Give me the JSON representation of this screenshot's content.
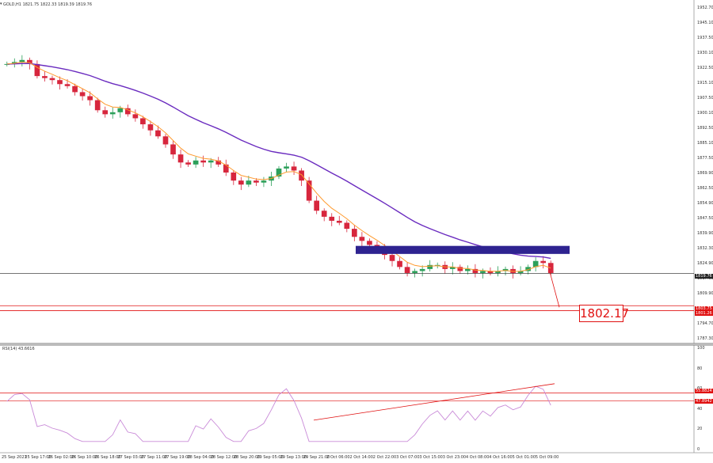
{
  "header": {
    "symbol_line": "GOLD,H1  1821.75  1822.33  1819.39  1819.76"
  },
  "price_axis": [
    "1952.70",
    "1945.10",
    "1937.50",
    "1930.10",
    "1922.50",
    "1915.10",
    "1907.50",
    "1900.10",
    "1892.50",
    "1885.10",
    "1877.50",
    "1869.90",
    "1862.50",
    "1854.90",
    "1847.50",
    "1839.90",
    "1832.30",
    "1824.90",
    "1817.30",
    "1809.90",
    "1802.30",
    "1794.70",
    "1787.30"
  ],
  "price_tags": {
    "current": "1819.76",
    "upper": "1803.75",
    "lower": "1801.26"
  },
  "target_label": "1802.17",
  "rsi": {
    "title": "RSI(14) 43.6616",
    "axis": [
      "100",
      "80",
      "60",
      "40",
      "20",
      "0"
    ],
    "tags": {
      "upper": "55.8824",
      "lower": "47.8942"
    }
  },
  "time_axis": [
    "25 Sep 2023",
    "25 Sep 17:00",
    "26 Sep 02:00",
    "26 Sep 10:00",
    "26 Sep 18:00",
    "27 Sep 03:00",
    "27 Sep 11:00",
    "27 Sep 19:00",
    "28 Sep 04:00",
    "28 Sep 12:00",
    "28 Sep 20:00",
    "29 Sep 05:00",
    "29 Sep 13:00",
    "29 Sep 21:00",
    "2 Oct 06:00",
    "2 Oct 14:00",
    "2 Oct 22:00",
    "3 Oct 07:00",
    "3 Oct 15:00",
    "3 Oct 23:00",
    "4 Oct 08:00",
    "4 Oct 16:00",
    "5 Oct 01:00",
    "5 Oct 09:00"
  ],
  "colors": {
    "bull": "#2ca05a",
    "bear": "#d7263d",
    "ema_fast": "#ff9a2e",
    "ema_slow": "#6a2bbf",
    "zone": "#2e2390",
    "level": "#e01010",
    "rsi_line": "#c98ad8"
  },
  "chart_data": {
    "type": "candlestick",
    "title": "GOLD,H1",
    "ohlc_last": {
      "open": 1821.75,
      "high": 1822.33,
      "low": 1819.39,
      "close": 1819.76
    },
    "ylim": [
      1787.3,
      1952.7
    ],
    "zone": [
      1829.5,
      1833.5
    ],
    "current_price": 1819.76,
    "support_levels": [
      1803.75,
      1801.26
    ],
    "target": 1802.17,
    "close_path": [
      1924,
      1925,
      1926,
      1924,
      1918,
      1917,
      1916,
      1914,
      1913,
      1910,
      1908,
      1906,
      1901,
      1899,
      1900,
      1902,
      1899,
      1897,
      1894,
      1891,
      1888,
      1884,
      1879,
      1875,
      1874,
      1876,
      1875,
      1876,
      1874,
      1870,
      1866,
      1864,
      1866,
      1865,
      1866,
      1868,
      1872,
      1873,
      1871,
      1866,
      1856,
      1851,
      1848,
      1846,
      1845,
      1842,
      1838,
      1836,
      1834,
      1832,
      1829,
      1826,
      1823,
      1820,
      1821,
      1822,
      1824,
      1824,
      1822,
      1823,
      1821,
      1822,
      1820,
      1821,
      1820,
      1821,
      1822,
      1820,
      1821,
      1823,
      1826,
      1825,
      1820
    ],
    "rsi": {
      "ylim": [
        0,
        100
      ],
      "levels": [
        55.8824,
        47.8942
      ],
      "last": 43.6616
    }
  }
}
